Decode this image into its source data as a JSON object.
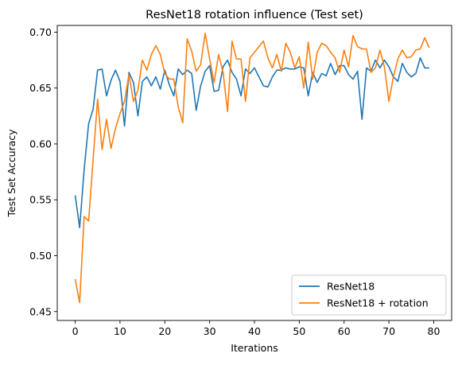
{
  "chart_data": {
    "type": "line",
    "title": "ResNet18 rotation influence (Test set)",
    "xlabel": "Iterations",
    "ylabel": "Test Set Accuracy",
    "xlim": [
      -4,
      84
    ],
    "ylim": [
      0.442,
      0.706
    ],
    "xticks": [
      0,
      10,
      20,
      30,
      40,
      50,
      60,
      70,
      80
    ],
    "xtick_labels": [
      "0",
      "10",
      "20",
      "30",
      "40",
      "50",
      "60",
      "70",
      "80"
    ],
    "yticks": [
      0.45,
      0.5,
      0.55,
      0.6,
      0.65,
      0.7
    ],
    "ytick_labels": [
      "0.45",
      "0.50",
      "0.55",
      "0.60",
      "0.65",
      "0.70"
    ],
    "grid": false,
    "legend_position": "lower-right",
    "x": [
      0,
      1,
      2,
      3,
      4,
      5,
      6,
      7,
      8,
      9,
      10,
      11,
      12,
      13,
      14,
      15,
      16,
      17,
      18,
      19,
      20,
      21,
      22,
      23,
      24,
      25,
      26,
      27,
      28,
      29,
      30,
      31,
      32,
      33,
      34,
      35,
      36,
      37,
      38,
      39,
      40,
      41,
      42,
      43,
      44,
      45,
      46,
      47,
      48,
      49,
      50,
      51,
      52,
      53,
      54,
      55,
      56,
      57,
      58,
      59,
      60,
      61,
      62,
      63,
      64,
      65,
      66,
      67,
      68,
      69,
      70,
      71,
      72,
      73,
      74,
      75,
      76,
      77,
      78,
      79
    ],
    "series": [
      {
        "name": "ResNet18",
        "color": "#1f77b4",
        "values": [
          0.554,
          0.525,
          0.577,
          0.618,
          0.631,
          0.666,
          0.667,
          0.643,
          0.657,
          0.666,
          0.656,
          0.616,
          0.664,
          0.655,
          0.625,
          0.656,
          0.66,
          0.652,
          0.66,
          0.649,
          0.666,
          0.653,
          0.643,
          0.667,
          0.662,
          0.666,
          0.663,
          0.63,
          0.652,
          0.665,
          0.67,
          0.647,
          0.648,
          0.669,
          0.675,
          0.664,
          0.658,
          0.643,
          0.667,
          0.663,
          0.668,
          0.66,
          0.652,
          0.651,
          0.66,
          0.666,
          0.666,
          0.668,
          0.667,
          0.667,
          0.669,
          0.668,
          0.643,
          0.664,
          0.655,
          0.663,
          0.661,
          0.672,
          0.662,
          0.67,
          0.67,
          0.662,
          0.658,
          0.665,
          0.622,
          0.668,
          0.665,
          0.675,
          0.668,
          0.675,
          0.669,
          0.66,
          0.656,
          0.672,
          0.664,
          0.66,
          0.663,
          0.677,
          0.668,
          0.668
        ]
      },
      {
        "name": "ResNet18 + rotation",
        "color": "#ff7f0e",
        "values": [
          0.479,
          0.458,
          0.535,
          0.531,
          0.586,
          0.64,
          0.595,
          0.622,
          0.596,
          0.614,
          0.627,
          0.638,
          0.662,
          0.638,
          0.648,
          0.675,
          0.666,
          0.68,
          0.688,
          0.68,
          0.663,
          0.658,
          0.658,
          0.633,
          0.619,
          0.694,
          0.683,
          0.665,
          0.671,
          0.699,
          0.676,
          0.655,
          0.68,
          0.664,
          0.629,
          0.692,
          0.676,
          0.676,
          0.638,
          0.677,
          0.682,
          0.687,
          0.692,
          0.677,
          0.668,
          0.68,
          0.665,
          0.69,
          0.682,
          0.668,
          0.678,
          0.65,
          0.691,
          0.658,
          0.682,
          0.69,
          0.688,
          0.682,
          0.677,
          0.664,
          0.684,
          0.669,
          0.697,
          0.687,
          0.685,
          0.685,
          0.664,
          0.668,
          0.684,
          0.669,
          0.638,
          0.66,
          0.676,
          0.684,
          0.677,
          0.678,
          0.684,
          0.685,
          0.695,
          0.686
        ]
      }
    ]
  }
}
